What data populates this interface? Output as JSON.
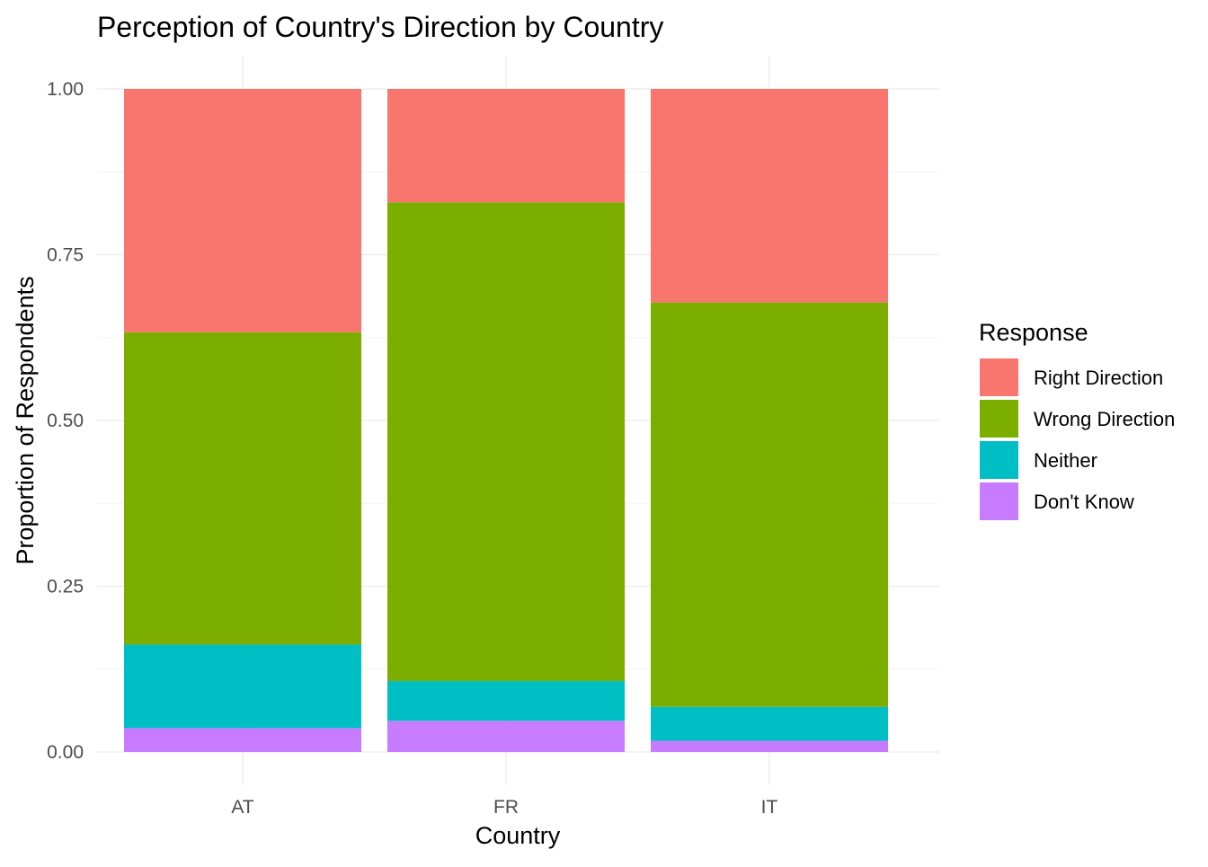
{
  "chart_data": {
    "type": "bar",
    "stacked": true,
    "title": "Perception of Country's Direction by Country",
    "xlabel": "Country",
    "ylabel": "Proportion of Respondents",
    "categories": [
      "AT",
      "FR",
      "IT"
    ],
    "ylim": [
      0,
      1
    ],
    "yticks": [
      "0.00",
      "0.25",
      "0.50",
      "0.75",
      "1.00"
    ],
    "ytick_values": [
      0,
      0.25,
      0.5,
      0.75,
      1.0
    ],
    "grid": true,
    "legend": {
      "title": "Response",
      "position": "right"
    },
    "stack_order": [
      "Don't Know",
      "Neither",
      "Wrong Direction",
      "Right Direction"
    ],
    "series": [
      {
        "name": "Right Direction",
        "color": "#F8766D",
        "values": [
          0.367,
          0.171,
          0.322
        ]
      },
      {
        "name": "Wrong Direction",
        "color": "#7CAE00",
        "values": [
          0.471,
          0.722,
          0.61
        ]
      },
      {
        "name": "Neither",
        "color": "#00BFC4",
        "values": [
          0.126,
          0.06,
          0.051
        ]
      },
      {
        "name": "Don't Know",
        "color": "#C77CFF",
        "values": [
          0.036,
          0.047,
          0.017
        ]
      }
    ]
  }
}
